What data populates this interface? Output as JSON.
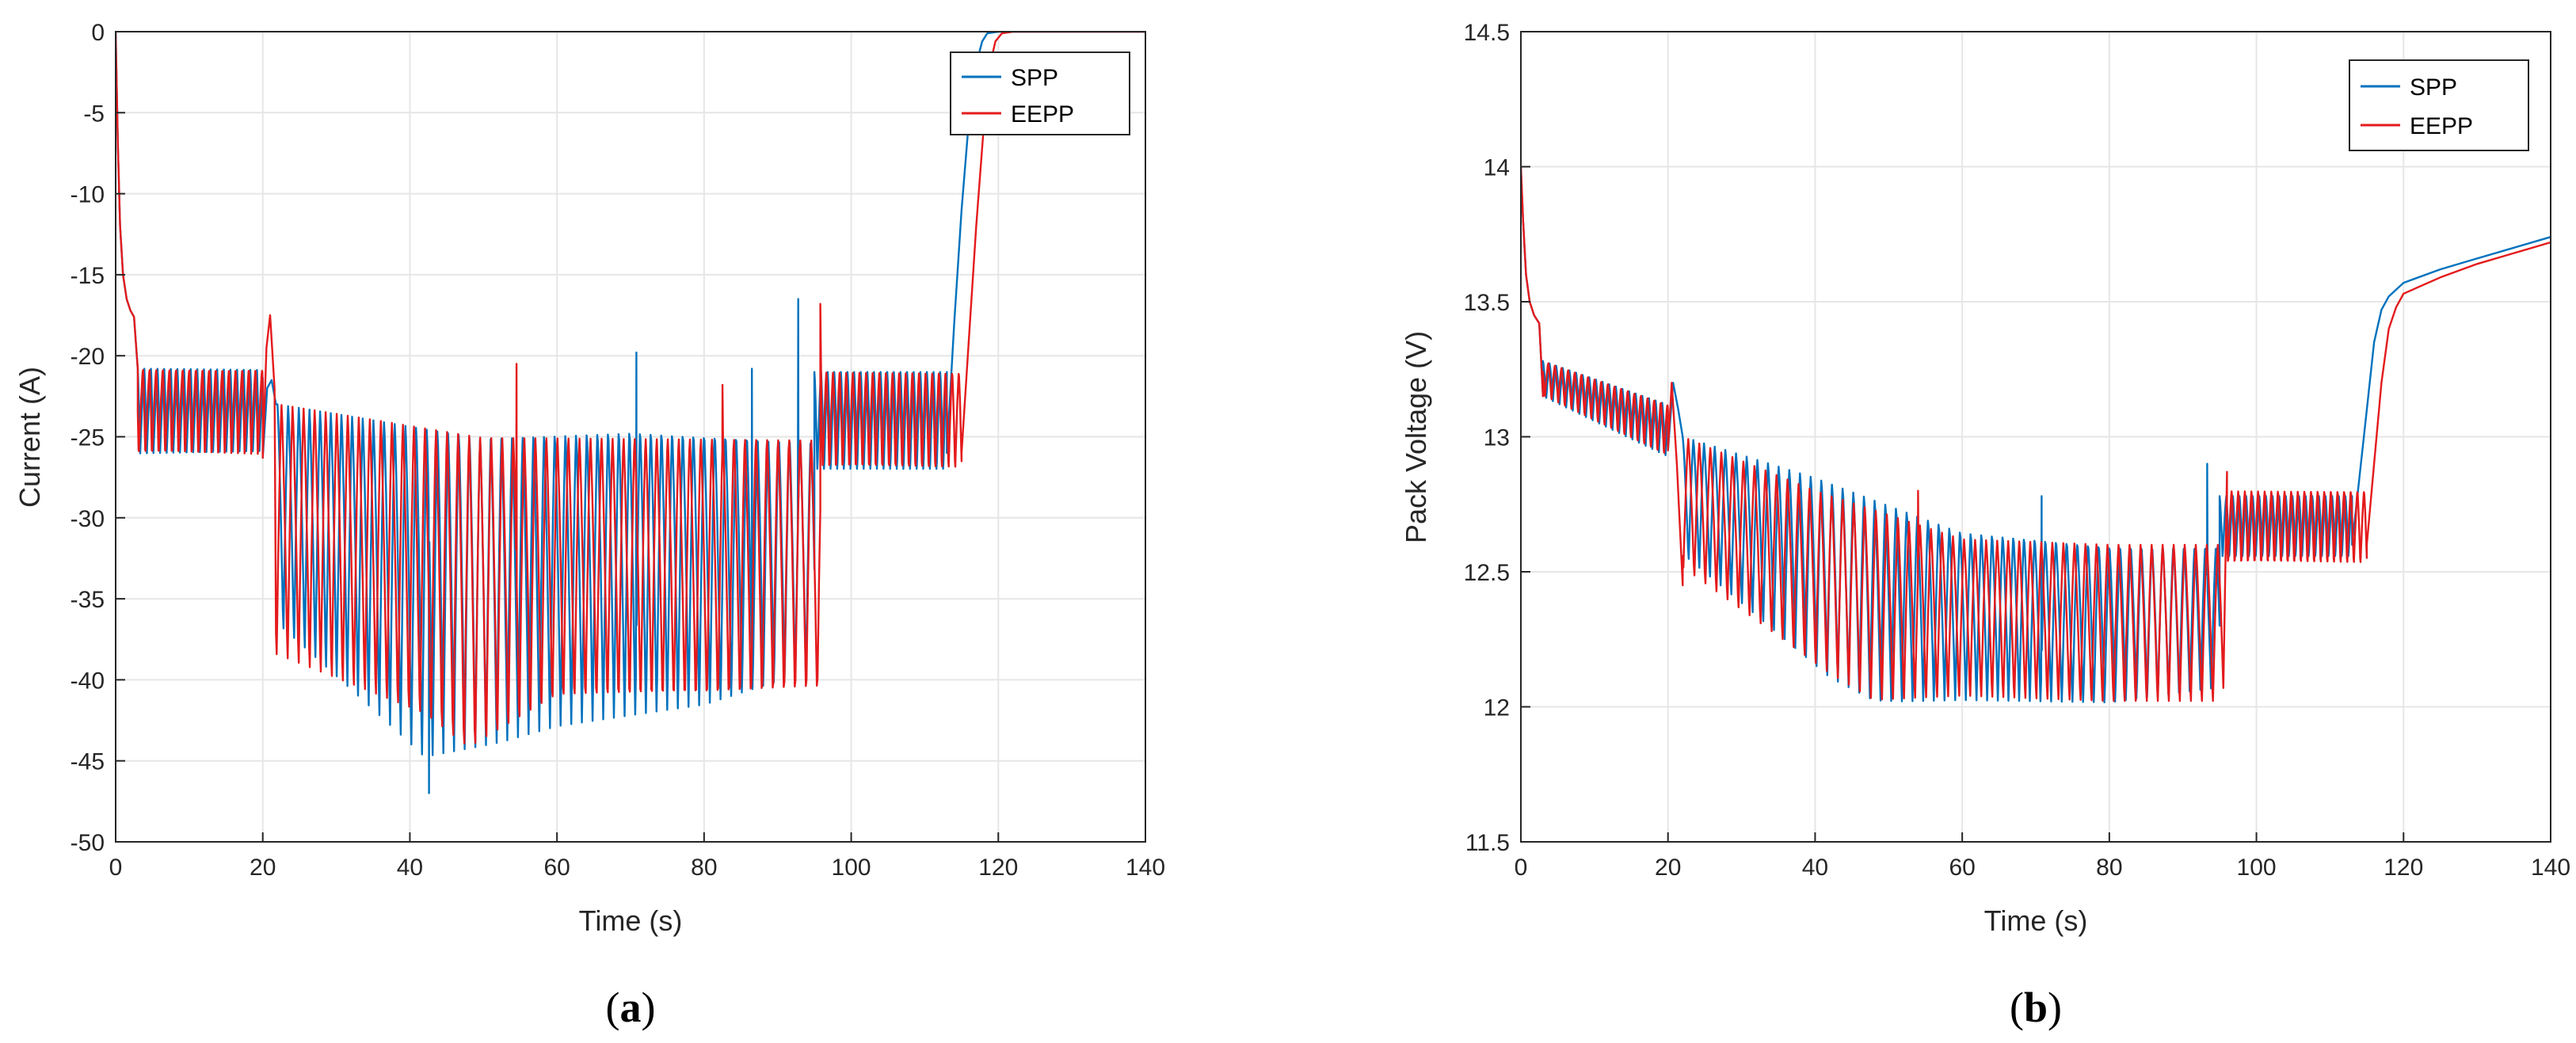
{
  "colors": {
    "spp": "#0072BD",
    "eepp": "#E41A1C",
    "grid": "#E6E6E6",
    "axis": "#262626"
  },
  "chart_data": [
    {
      "id": "a",
      "type": "line",
      "caption_letter": "a",
      "caption_open": "(",
      "caption_close": ")",
      "xlabel": "Time (s)",
      "ylabel": "Current (A)",
      "xlim": [
        0,
        140
      ],
      "ylim": [
        -50,
        0
      ],
      "xticks": [
        0,
        20,
        40,
        60,
        80,
        100,
        120,
        140
      ],
      "yticks": [
        0,
        -5,
        -10,
        -15,
        -20,
        -25,
        -30,
        -35,
        -40,
        -45,
        -50
      ],
      "grid": true,
      "legend_position": "top-right",
      "legend": [
        "SPP",
        "EEPP"
      ],
      "series": [
        {
          "name": "SPP",
          "segments": [
            {
              "t": [
                0,
                0.3,
                0.6,
                1,
                1.5,
                2,
                2.5,
                3
              ],
              "v": [
                0,
                -7,
                -12,
                -15,
                -16.5,
                -17.2,
                -17.6,
                -20.8
              ]
            },
            {
              "from": 3,
              "to": 20,
              "period": 0.9,
              "high": -20.8,
              "low": -26.3,
              "skew": 0.35
            },
            {
              "t": [
                20,
                20.6,
                21.2,
                21.8
              ],
              "v": [
                -26.3,
                -22,
                -21.5,
                -23
              ]
            },
            {
              "from": 22,
              "to": 95,
              "period": 1.45,
              "highs": [
                [
                  22,
                  -23
                ],
                [
                  50,
                  -25
                ],
                [
                  70,
                  -24.5
                ],
                [
                  95,
                  -25
                ]
              ],
              "lows": [
                [
                  22,
                  -37
                ],
                [
                  42,
                  -45
                ],
                [
                  60,
                  -43
                ],
                [
                  80,
                  -42
                ],
                [
                  95,
                  -40
                ]
              ],
              "skew": 0.55,
              "spikes": [
                [
                  42.6,
                  -47
                ],
                [
                  70.8,
                  -19.8
                ],
                [
                  86.5,
                  -20.8
                ],
                [
                  92.8,
                  -16.5
                ]
              ]
            },
            {
              "from": 95,
              "to": 113,
              "period": 0.9,
              "high": -21,
              "low": -27.2,
              "skew": 0.45
            },
            {
              "t": [
                113,
                114,
                115,
                116,
                117,
                117.8,
                118.5,
                120,
                140
              ],
              "v": [
                -26,
                -18,
                -11,
                -5.5,
                -2,
                -0.6,
                -0.1,
                0,
                0
              ]
            }
          ]
        },
        {
          "name": "EEPP",
          "segments": [
            {
              "t": [
                0,
                0.3,
                0.6,
                1,
                1.5,
                2,
                2.5,
                3
              ],
              "v": [
                0,
                -7,
                -12,
                -15,
                -16.5,
                -17.2,
                -17.6,
                -20.8
              ]
            },
            {
              "from": 3,
              "to": 20,
              "period": 0.9,
              "high": -20.8,
              "low": -26.3,
              "skew": 0.35,
              "phase": 0.2
            },
            {
              "t": [
                20,
                20.5,
                21,
                21.6
              ],
              "v": [
                -26.3,
                -19.5,
                -17.5,
                -22
              ]
            },
            {
              "from": 21.8,
              "to": 95.8,
              "period": 1.5,
              "highs": [
                [
                  22,
                  -23
                ],
                [
                  50,
                  -25
                ],
                [
                  70,
                  -25
                ],
                [
                  95,
                  -25
                ]
              ],
              "lows": [
                [
                  22,
                  -39
                ],
                [
                  42,
                  -43
                ],
                [
                  48,
                  -45.3
                ],
                [
                  60,
                  -42
                ],
                [
                  80,
                  -42
                ],
                [
                  95,
                  -41.5
                ]
              ],
              "skew": 0.55,
              "phase": 0.5,
              "spikes": [
                [
                  54.5,
                  -20.5
                ],
                [
                  82.5,
                  -21.8
                ],
                [
                  95.8,
                  -16.8
                ]
              ]
            },
            {
              "from": 96,
              "to": 115,
              "period": 0.9,
              "high": -21,
              "low": -27.2,
              "skew": 0.45,
              "phase": 0.3
            },
            {
              "t": [
                115,
                116,
                117,
                118,
                118.8,
                119.6,
                120.5,
                122,
                140
              ],
              "v": [
                -26,
                -19,
                -12,
                -6,
                -2.2,
                -0.6,
                -0.1,
                0,
                0
              ]
            }
          ]
        }
      ]
    },
    {
      "id": "b",
      "type": "line",
      "caption_letter": "b",
      "caption_open": "(",
      "caption_close": ")",
      "xlabel": "Time (s)",
      "ylabel": "Pack Voltage (V)",
      "xlim": [
        0,
        140
      ],
      "ylim": [
        11.5,
        14.5
      ],
      "xticks": [
        0,
        20,
        40,
        60,
        80,
        100,
        120,
        140
      ],
      "yticks": [
        11.5,
        12,
        12.5,
        13,
        13.5,
        14,
        14.5
      ],
      "grid": true,
      "legend_position": "top-right",
      "legend": [
        "SPP",
        "EEPP"
      ],
      "series": [
        {
          "name": "SPP",
          "segments": [
            {
              "t": [
                0,
                0.3,
                0.7,
                1.2,
                1.8,
                2.5,
                3
              ],
              "v": [
                14.0,
                13.8,
                13.6,
                13.5,
                13.45,
                13.42,
                13.15
              ]
            },
            {
              "from": 3,
              "to": 20,
              "period": 0.9,
              "highs": [
                [
                  3,
                  13.28
                ],
                [
                  20,
                  13.12
                ]
              ],
              "lows": [
                [
                  3,
                  13.15
                ],
                [
                  20,
                  12.92
                ]
              ],
              "skew": 0.5
            },
            {
              "t": [
                20,
                20.7,
                21.4,
                22
              ],
              "v": [
                12.95,
                13.2,
                13.1,
                13.0
              ]
            },
            {
              "from": 22,
              "to": 95,
              "period": 1.45,
              "highs": [
                [
                  22,
                  13.0
                ],
                [
                  40,
                  12.85
                ],
                [
                  60,
                  12.65
                ],
                [
                  80,
                  12.6
                ],
                [
                  95,
                  12.6
                ]
              ],
              "lows": [
                [
                  22,
                  12.55
                ],
                [
                  42,
                  12.1
                ],
                [
                  48,
                  12.02
                ],
                [
                  60,
                  12.02
                ],
                [
                  80,
                  12.0
                ],
                [
                  95,
                  12.05
                ]
              ],
              "skew": 0.55,
              "spikes": [
                [
                  70.8,
                  12.78
                ],
                [
                  93.3,
                  12.9
                ]
              ]
            },
            {
              "from": 95,
              "to": 113,
              "period": 0.9,
              "high": 12.78,
              "low": 12.55,
              "skew": 0.45
            },
            {
              "t": [
                113,
                114,
                115,
                116,
                117,
                118,
                120,
                125,
                130,
                135,
                140
              ],
              "v": [
                12.6,
                12.85,
                13.1,
                13.35,
                13.47,
                13.52,
                13.57,
                13.62,
                13.66,
                13.7,
                13.74
              ]
            }
          ]
        },
        {
          "name": "EEPP",
          "segments": [
            {
              "t": [
                0,
                0.3,
                0.7,
                1.2,
                1.8,
                2.5,
                3
              ],
              "v": [
                14.0,
                13.8,
                13.6,
                13.5,
                13.45,
                13.42,
                13.15
              ]
            },
            {
              "from": 3,
              "to": 20,
              "period": 0.9,
              "highs": [
                [
                  3,
                  13.28
                ],
                [
                  20,
                  13.12
                ]
              ],
              "lows": [
                [
                  3,
                  13.15
                ],
                [
                  20,
                  12.92
                ]
              ],
              "skew": 0.5,
              "phase": 0.2
            },
            {
              "t": [
                20,
                20.5,
                21.2,
                22
              ],
              "v": [
                12.95,
                13.2,
                12.9,
                12.45
              ]
            },
            {
              "from": 22,
              "to": 95.5,
              "period": 1.5,
              "highs": [
                [
                  22,
                  13.0
                ],
                [
                  40,
                  12.8
                ],
                [
                  60,
                  12.62
                ],
                [
                  80,
                  12.6
                ],
                [
                  95,
                  12.6
                ]
              ],
              "lows": [
                [
                  22,
                  12.5
                ],
                [
                  42,
                  12.1
                ],
                [
                  48,
                  12.0
                ],
                [
                  60,
                  12.02
                ],
                [
                  80,
                  12.0
                ],
                [
                  95,
                  12.0
                ]
              ],
              "skew": 0.55,
              "phase": 0.5,
              "spikes": [
                [
                  54,
                  12.8
                ],
                [
                  96,
                  12.87
                ]
              ]
            },
            {
              "from": 96,
              "to": 115,
              "period": 0.9,
              "high": 12.8,
              "low": 12.52,
              "skew": 0.45,
              "phase": 0.3
            },
            {
              "t": [
                115,
                116,
                117,
                118,
                119,
                120,
                125,
                130,
                135,
                140
              ],
              "v": [
                12.6,
                12.9,
                13.2,
                13.4,
                13.48,
                13.53,
                13.59,
                13.64,
                13.68,
                13.72
              ]
            }
          ]
        }
      ]
    }
  ]
}
